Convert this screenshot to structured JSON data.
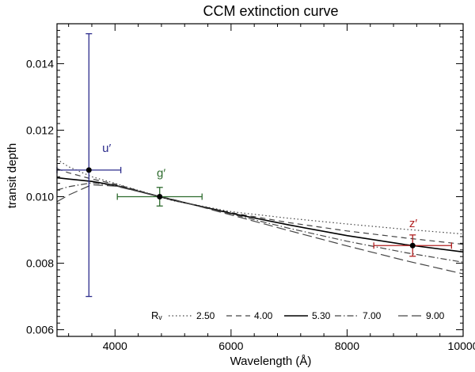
{
  "chart_data": {
    "type": "line",
    "title": "CCM extinction curve",
    "xlabel": "Wavelength (Å)",
    "ylabel": "transit depth",
    "xlim": [
      3000,
      10000
    ],
    "ylim": [
      0.0058,
      0.0152
    ],
    "xticks": [
      4000,
      6000,
      8000,
      10000
    ],
    "xtick_labels": [
      "4000",
      "6000",
      "8000",
      "10000"
    ],
    "yticks": [
      0.006,
      0.008,
      0.01,
      0.012,
      0.014
    ],
    "ytick_labels": [
      "0.006",
      "0.008",
      "0.010",
      "0.012",
      "0.014"
    ],
    "grid": false,
    "legend": {
      "title": "Rᵥ",
      "placement": "bottom",
      "entries": [
        {
          "label": "2.50",
          "dash": "dotted"
        },
        {
          "label": "4.00",
          "dash": "dashed"
        },
        {
          "label": "5.30",
          "dash": "solid"
        },
        {
          "label": "7.00",
          "dash": "dash-dot"
        },
        {
          "label": "9.00",
          "dash": "long-dash"
        }
      ]
    },
    "series": [
      {
        "rv": "2.50",
        "dash": "dotted",
        "x": [
          3000,
          3200,
          3600,
          4000,
          5000,
          6000,
          7000,
          8000,
          9000,
          10000
        ],
        "y": [
          0.01112,
          0.0109,
          0.0106,
          0.0104,
          0.00988,
          0.00955,
          0.00935,
          0.00918,
          0.00902,
          0.00888
        ]
      },
      {
        "rv": "4.00",
        "dash": "dashed",
        "x": [
          3000,
          3200,
          3600,
          4000,
          5000,
          6000,
          7000,
          8000,
          9000,
          10000
        ],
        "y": [
          0.01084,
          0.01072,
          0.01053,
          0.01038,
          0.00989,
          0.00952,
          0.00922,
          0.00897,
          0.00876,
          0.00857
        ]
      },
      {
        "rv": "5.30",
        "dash": "solid",
        "x": [
          3000,
          3200,
          3600,
          4000,
          5000,
          6000,
          7000,
          8000,
          9000,
          10000
        ],
        "y": [
          0.01057,
          0.01053,
          0.01046,
          0.01034,
          0.0099,
          0.0095,
          0.00915,
          0.00883,
          0.00856,
          0.00834
        ]
      },
      {
        "rv": "7.00",
        "dash": "dash-dot",
        "x": [
          3000,
          3200,
          3600,
          4000,
          5000,
          6000,
          7000,
          8000,
          9000,
          10000
        ],
        "y": [
          0.0102,
          0.0103,
          0.01042,
          0.01033,
          0.00991,
          0.00948,
          0.00905,
          0.00866,
          0.00832,
          0.00803
        ]
      },
      {
        "rv": "9.00",
        "dash": "long-dash",
        "x": [
          3000,
          3200,
          3600,
          4000,
          5000,
          6000,
          7000,
          8000,
          9000,
          10000
        ],
        "y": [
          0.00985,
          0.01005,
          0.01036,
          0.01032,
          0.00992,
          0.00945,
          0.00898,
          0.00852,
          0.00808,
          0.00768
        ]
      }
    ],
    "points": [
      {
        "label": "u′",
        "x": 3550,
        "y": 0.0108,
        "xerr": 550,
        "yerr_low": 0.0038,
        "yerr_high": 0.0041,
        "color": "#2c2c8c",
        "label_x": 3780,
        "label_y": 0.01135
      },
      {
        "label": "g′",
        "x": 4770,
        "y": 0.01,
        "xerr": 730,
        "yerr_low": 0.00028,
        "yerr_high": 0.00028,
        "color": "#2e6b2e",
        "label_x": 4720,
        "label_y": 0.0106
      },
      {
        "label": "z′",
        "x": 9130,
        "y": 0.00853,
        "xerr": 670,
        "yerr_low": 0.00032,
        "yerr_high": 0.00032,
        "color": "#b02020",
        "label_x": 9070,
        "label_y": 0.00908
      }
    ]
  }
}
